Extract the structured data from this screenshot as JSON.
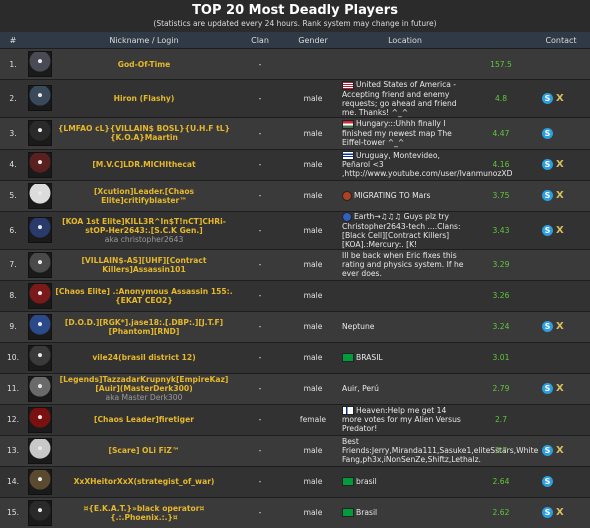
{
  "header": {
    "title": "TOP 20 Most Deadly Players",
    "subtitle": "(Statistics are updated every 24 hours. Rank system may change in future)"
  },
  "columns": {
    "rank": "#",
    "nickname": "Nickname / Login",
    "clan": "Clan",
    "gender": "Gender",
    "location": "Location",
    "contact": "Contact"
  },
  "colors": {
    "nickname": "#e6b82a",
    "score": "#5fc83a",
    "header": "#2f3a46"
  },
  "rows": [
    {
      "rank": "1.",
      "nick": "God-Of-Time",
      "aka": "",
      "clan": "-",
      "gender": "",
      "flag": "",
      "location": "",
      "score": "157.5",
      "skype": false,
      "xfire": false,
      "avatar": "#4a4a55"
    },
    {
      "rank": "2.",
      "nick": "Hiron (Flashy)",
      "aka": "",
      "clan": "-",
      "gender": "male",
      "flag": "us",
      "location": "United States of America - Accepting friend and enemy requests; go ahead and friend me. Thanks! ^_^",
      "score": "4.8",
      "skype": true,
      "xfire": true,
      "avatar": "#3a4a5a"
    },
    {
      "rank": "3.",
      "nick": "{LMFAO cL}{VILLAIN$ BOSL}{U.H.F tL}{K.O.A}Maartin",
      "aka": "",
      "clan": "-",
      "gender": "male",
      "flag": "hu",
      "location": "Hungary:::Uhhh finally I finished my newest map The Eiffel-tower ^_^",
      "score": "4.47",
      "skype": true,
      "xfire": false,
      "avatar": "#2a2a2a"
    },
    {
      "rank": "4.",
      "nick": "[M.V.C]LDR.MICHIthecat",
      "aka": "",
      "clan": "-",
      "gender": "male",
      "flag": "uy",
      "location": "Uruguay, Montevideo, Peñarol <3 ,http://www.youtube.com/user/IvanmunozXD",
      "score": "4.16",
      "skype": true,
      "xfire": true,
      "avatar": "#5a2020"
    },
    {
      "rank": "5.",
      "nick": "[Xcution]Leader.[Chaos Elite]critifyblaster™",
      "aka": "",
      "clan": "-",
      "gender": "male",
      "flag": "mars",
      "location": "MIGRATING TO Mars",
      "score": "3.75",
      "skype": true,
      "xfire": true,
      "avatar": "#dcdcdc"
    },
    {
      "rank": "6.",
      "nick": "[KOA 1st Elite]KILL3R^In$T!nCT]CHRi-stOP-Her2643:.[S.C.K Gen.]",
      "aka": "christopher2643",
      "clan": "-",
      "gender": "male",
      "flag": "earth",
      "location": "Earth→♫♫♫ Guys plz try Christopher2643-tech ....Clans: [Black Cell][Contract Killers][KOA].:Mercury:. [K!",
      "score": "3.43",
      "skype": true,
      "xfire": true,
      "avatar": "#2a3a6a"
    },
    {
      "rank": "7.",
      "nick": "[VILLAIN$-AS][UHF][Contract Killers]Assassin101",
      "aka": "",
      "clan": "-",
      "gender": "male",
      "flag": "",
      "location": "Ill be back when Eric fixes this rating and physics system. If he ever does.",
      "score": "3.29",
      "skype": false,
      "xfire": false,
      "avatar": "#4a4a4a"
    },
    {
      "rank": "8.",
      "nick": "[Chaos Elite] .:Anonymous Assassin 155:.{EKAT CEO2}",
      "aka": "",
      "clan": "-",
      "gender": "male",
      "flag": "",
      "location": "",
      "score": "3.26",
      "skype": false,
      "xfire": false,
      "avatar": "#7a1a1a"
    },
    {
      "rank": "9.",
      "nick": "[D.O.D.][RGK*].jase18:.[.DBP:.][J.T.F][Phantom][RND]",
      "aka": "",
      "clan": "-",
      "gender": "male",
      "flag": "",
      "location": "Neptune",
      "score": "3.24",
      "skype": true,
      "xfire": true,
      "avatar": "#2a4a8a"
    },
    {
      "rank": "10.",
      "nick": "vile24(brasil district 12)",
      "aka": "",
      "clan": "-",
      "gender": "male",
      "flag": "br",
      "location": "BRASIL",
      "score": "3.01",
      "skype": false,
      "xfire": false,
      "avatar": "#3a3a3a"
    },
    {
      "rank": "11.",
      "nick": "[Legends]TazzadarKrupnyk[EmpireKaz][Auir](MasterDerk300)",
      "aka": "Master Derk300",
      "clan": "-",
      "gender": "male",
      "flag": "",
      "location": "Auir, Perú",
      "score": "2.79",
      "skype": true,
      "xfire": true,
      "avatar": "#6a6a6a"
    },
    {
      "rank": "12.",
      "nick": "[Chaos Leader]firetiger",
      "aka": "",
      "clan": "-",
      "gender": "female",
      "flag": "fi",
      "location": "Heaven:Help me get 14 more votes for my Alien Versus Predator!",
      "score": "2.7",
      "skype": false,
      "xfire": false,
      "avatar": "#7a1010"
    },
    {
      "rank": "13.",
      "nick": "[Scare] OLi FiZ™",
      "aka": "",
      "clan": "-",
      "gender": "male",
      "flag": "",
      "location": "Best Friends:Jerry,Miranda111,Sasuke1,eliteSstars,White Fang,ph3x,iNonSenZe,Shiftz,Lethalz.",
      "score": "2.7",
      "skype": true,
      "xfire": true,
      "avatar": "#c8c8c8"
    },
    {
      "rank": "14.",
      "nick": "XxXHeitorXxX(strategist_of_war)",
      "aka": "",
      "clan": "-",
      "gender": "male",
      "flag": "br",
      "location": "brasil",
      "score": "2.64",
      "skype": true,
      "xfire": false,
      "avatar": "#5a4a30"
    },
    {
      "rank": "15.",
      "nick": "¤{E.K.A.T.}»black operator¤{.:.Phoenix.:.}¤",
      "aka": "",
      "clan": "-",
      "gender": "male",
      "flag": "br",
      "location": "Brasil",
      "score": "2.62",
      "skype": true,
      "xfire": true,
      "avatar": "#2a2a2a"
    }
  ]
}
